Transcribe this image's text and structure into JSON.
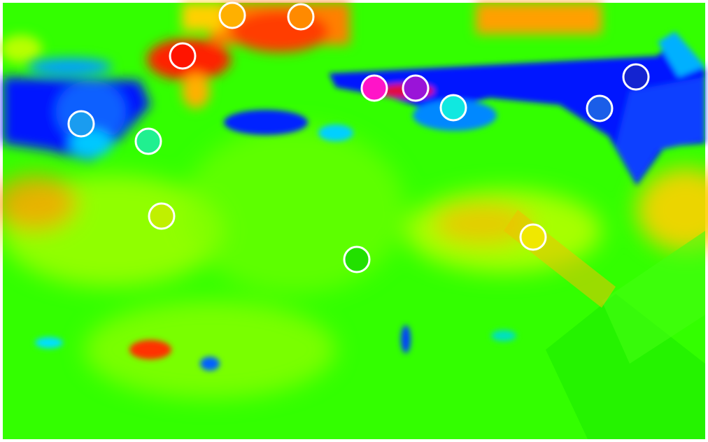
{
  "image": {
    "kind": "false-color heat map",
    "palette": [
      "#0000e0",
      "#0a66ff",
      "#00c8ff",
      "#00ff66",
      "#33ff00",
      "#a8ff00",
      "#e8ff00",
      "#ffd400",
      "#ff8c00",
      "#ff2a00"
    ],
    "background_color": "#33ff00"
  },
  "markers": [
    {
      "id": "marker-1",
      "color": "#ffb000"
    },
    {
      "id": "marker-2",
      "color": "#ff8a00"
    },
    {
      "id": "marker-3",
      "color": "#ff1400"
    },
    {
      "id": "marker-4",
      "color": "#ff14c8"
    },
    {
      "id": "marker-5",
      "color": "#9a14d8"
    },
    {
      "id": "marker-6",
      "color": "#10e8e0"
    },
    {
      "id": "marker-7",
      "color": "#1a5ee8"
    },
    {
      "id": "marker-8",
      "color": "#1424d0"
    },
    {
      "id": "marker-9",
      "color": "#1a9cf0"
    },
    {
      "id": "marker-10",
      "color": "#20f090"
    },
    {
      "id": "marker-11",
      "color": "#c0f000"
    },
    {
      "id": "marker-12",
      "color": "#22e000"
    },
    {
      "id": "marker-13",
      "color": "#f0e800"
    }
  ]
}
